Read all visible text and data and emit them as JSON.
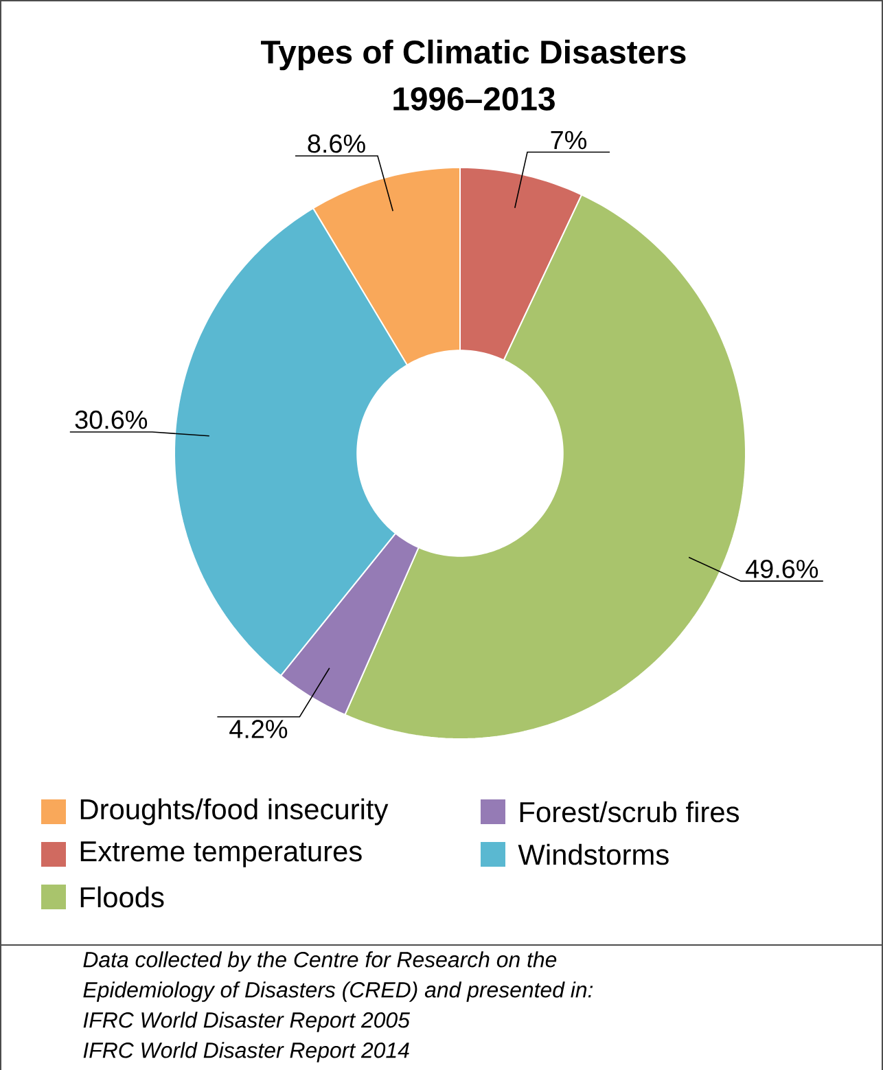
{
  "chart_data": {
    "type": "donut",
    "title": "Types of Climatic Disasters",
    "subtitle": "1996–2013",
    "categories": [
      "Droughts/food insecurity",
      "Extreme temperatures",
      "Floods",
      "Forest/scrub fires",
      "Windstorms"
    ],
    "values": [
      8.6,
      7,
      49.6,
      4.2,
      30.6
    ],
    "colors": [
      "#f9a85a",
      "#d06a60",
      "#a9c46c",
      "#957bb5",
      "#5ab8d1"
    ],
    "value_labels": [
      "8.6%",
      "7%",
      "49.6%",
      "4.2%",
      "30.6%"
    ],
    "legend": "bottom",
    "annotations": [
      "Data collected by the Centre for Research on the",
      "Epidemiology of Disasters (CRED) and presented in:",
      "IFRC World Disaster Report 2005",
      "IFRC World Disaster Report 2014"
    ]
  }
}
